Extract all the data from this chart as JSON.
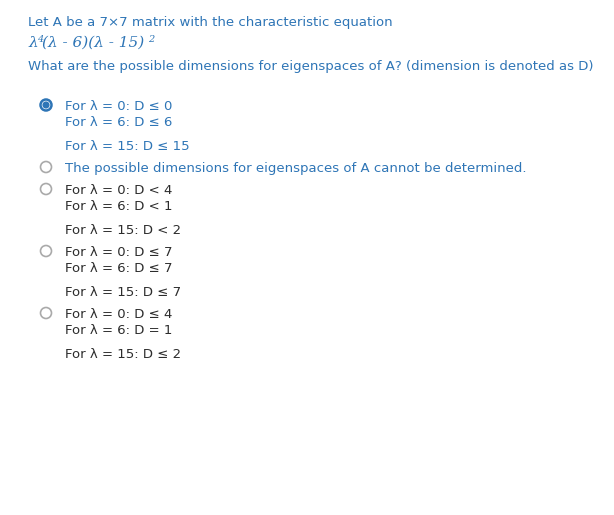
{
  "bg_color": "#ffffff",
  "title_line1": "Let A be a 7×7 matrix with the characteristic equation",
  "title_line2_parts": [
    {
      "text": "λ",
      "style": "italic"
    },
    {
      "text": "4",
      "style": "superscript"
    },
    {
      "text": "(λ - 6)(λ - 15)",
      "style": "italic"
    },
    {
      "text": "2",
      "style": "superscript"
    }
  ],
  "question": "What are the possible dimensions for eigenspaces of A? (dimension is denoted as D)",
  "options": [
    {
      "selected": true,
      "lines": [
        "For λ = 0: D ≤ 0",
        "For λ = 6: D ≤ 6",
        "",
        "For λ = 15: D ≤ 15"
      ]
    },
    {
      "selected": false,
      "lines": [
        "The possible dimensions for eigenspaces of A cannot be determined."
      ]
    },
    {
      "selected": false,
      "lines": [
        "For λ = 0: D < 4",
        "For λ = 6: D < 1",
        "",
        "For λ = 15: D < 2"
      ]
    },
    {
      "selected": false,
      "lines": [
        "For λ = 0: D ≤ 7",
        "For λ = 6: D ≤ 7",
        "",
        "For λ = 15: D ≤ 7"
      ]
    },
    {
      "selected": false,
      "lines": [
        "For λ = 0: D ≤ 4",
        "For λ = 6: D = 1",
        "",
        "For λ = 15: D ≤ 2"
      ]
    }
  ],
  "text_color": "#2c2c2c",
  "blue_color": "#2E75B6",
  "radio_selected_outer": "#2E75B6",
  "radio_unselected_border": "#aaaaaa",
  "font_size_title": 9.5,
  "font_size_equation": 11.0,
  "font_size_question": 9.5,
  "font_size_option": 9.5,
  "font_size_super": 7.0
}
